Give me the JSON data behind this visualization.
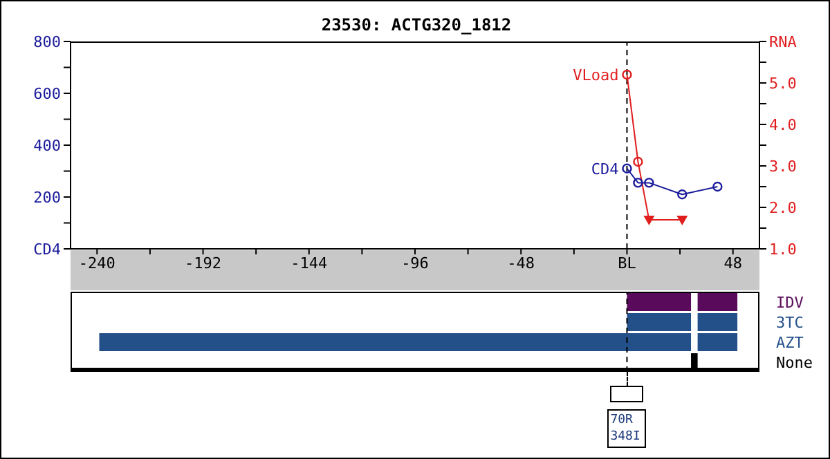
{
  "chart_data": [
    {
      "type": "line",
      "title": "23530: ACTG320_1812",
      "xlim": [
        -252,
        60
      ],
      "xticks": [
        -240,
        {
          "value": -216,
          "label": null
        },
        -192,
        {
          "value": -168,
          "label": null
        },
        -144,
        {
          "value": -120,
          "label": null
        },
        -96,
        {
          "value": -72,
          "label": null
        },
        -48,
        {
          "value": -24,
          "label": null
        },
        {
          "value": 0,
          "label": "BL"
        },
        {
          "value": 24,
          "label": null
        },
        48
      ],
      "ylim": [
        0,
        800
      ],
      "yticks": [
        {
          "value": 0,
          "label": "CD4"
        },
        {
          "value": 100,
          "label": null
        },
        200,
        {
          "value": 300,
          "label": null
        },
        400,
        {
          "value": 500,
          "label": null
        },
        600,
        {
          "value": 700,
          "label": null
        },
        800
      ],
      "y2lim": [
        1,
        6
      ],
      "y2ticks": [
        {
          "value": 1,
          "label": "1.0"
        },
        {
          "value": 1.5,
          "label": null
        },
        {
          "value": 2,
          "label": "2.0"
        },
        {
          "value": 2.5,
          "label": null
        },
        {
          "value": 3,
          "label": "3.0"
        },
        {
          "value": 3.5,
          "label": null
        },
        {
          "value": 4,
          "label": "4.0"
        },
        {
          "value": 4.5,
          "label": null
        },
        {
          "value": 5,
          "label": "5.0"
        },
        {
          "value": 5.5,
          "label": null
        },
        {
          "value": 6,
          "label": "RNA"
        }
      ],
      "ref_lines": [
        {
          "axis": "x",
          "value": 0,
          "line_style": "dashed",
          "color": "#000000"
        }
      ],
      "series": [
        {
          "name": "CD4",
          "type": "line",
          "color": "#1c1c9c",
          "axis": "y",
          "marker": "circle",
          "x": [
            0,
            5,
            10,
            25,
            41
          ],
          "values": [
            310,
            255,
            255,
            210,
            240
          ]
        },
        {
          "name": "VLoad",
          "type": "line",
          "color": "#e01e1e",
          "axis": "y2",
          "marker": "none",
          "x": [
            0,
            5,
            10,
            25
          ],
          "values": [
            5.2,
            3.1,
            1.7,
            1.7
          ]
        },
        {
          "type": "scatter",
          "color": "#e01e1e",
          "axis": "y2",
          "marker": "circle",
          "x": [
            0,
            5
          ],
          "values": [
            5.2,
            3.1
          ]
        },
        {
          "type": "scatter",
          "color": "#e01e1e",
          "axis": "y2",
          "marker": "triangle",
          "x": [
            10,
            25
          ],
          "values": [
            1.7,
            1.7
          ]
        }
      ]
    },
    {
      "type": "bar",
      "orientation": "horizontal",
      "categories": [
        "IDV",
        "3TC",
        "AZT",
        "None"
      ],
      "xlim": [
        -252,
        60
      ],
      "tick_labels": "y",
      "ref_lines": [
        {
          "axis": "x",
          "value": 0,
          "line_style": "dashed",
          "color": "#000000"
        }
      ],
      "annotations": [
        "70R\n348I"
      ],
      "series": [
        {
          "colors": [
            "#5a0a5a",
            "#24508a",
            "#24508a",
            "#000000"
          ],
          "base": [
            0,
            0,
            -239,
            29
          ],
          "values": [
            29,
            29,
            268,
            3
          ]
        },
        {
          "colors": [
            "#5a0a5a",
            "#24508a",
            "#24508a",
            null
          ],
          "base": [
            32,
            32,
            32,
            null
          ],
          "values": [
            18,
            18,
            18,
            null
          ]
        }
      ]
    }
  ]
}
